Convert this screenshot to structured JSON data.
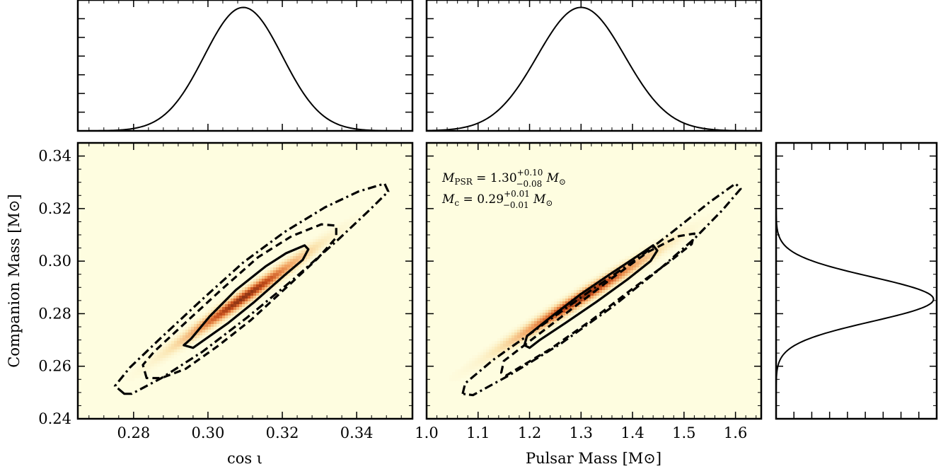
{
  "chart_data": [
    {
      "id": "top-left-marginal",
      "type": "line",
      "xlim": [
        0.265,
        0.355
      ],
      "ylim": [
        0,
        1.06
      ],
      "x_ticks": [
        0.28,
        0.3,
        0.32,
        0.34
      ],
      "curve": {
        "kind": "gaussian",
        "mean": 0.3095,
        "sigma": 0.0105,
        "peak": 1.0
      }
    },
    {
      "id": "top-middle-marginal",
      "type": "line",
      "xlim": [
        1.0,
        1.65
      ],
      "ylim": [
        0,
        1.06
      ],
      "x_ticks": [
        1.0,
        1.1,
        1.2,
        1.3,
        1.4,
        1.5,
        1.6
      ],
      "curve": {
        "kind": "gaussian",
        "mean": 1.3,
        "sigma": 0.085,
        "peak": 1.0
      }
    },
    {
      "id": "bottom-left-joint",
      "type": "heatmap",
      "xlabel": "cos ι",
      "ylabel": "Companion Mass [M⊙]",
      "xlim": [
        0.265,
        0.355
      ],
      "ylim": [
        0.24,
        0.345
      ],
      "x_ticks": [
        0.28,
        0.3,
        0.32,
        0.34
      ],
      "x_tick_labels": [
        "0.28",
        "0.30",
        "0.32",
        "0.34"
      ],
      "y_ticks": [
        0.24,
        0.26,
        0.28,
        0.3,
        0.32,
        0.34
      ],
      "y_tick_labels": [
        "0.24",
        "0.26",
        "0.28",
        "0.30",
        "0.32",
        "0.34"
      ],
      "density": {
        "mean_x": 0.3095,
        "mean_y": 0.286,
        "sigma_x": 0.0105,
        "sigma_y": 0.0105,
        "correlation": 0.985
      },
      "contours": [
        {
          "style": "solid",
          "level_sigma": 1,
          "points": [
            [
              0.2935,
              0.268
            ],
            [
              0.2955,
              0.2705
            ],
            [
              0.3005,
              0.279
            ],
            [
              0.3075,
              0.289
            ],
            [
              0.3155,
              0.298
            ],
            [
              0.321,
              0.303
            ],
            [
              0.326,
              0.306
            ],
            [
              0.327,
              0.3045
            ],
            [
              0.3255,
              0.3005
            ],
            [
              0.3205,
              0.2945
            ],
            [
              0.3125,
              0.2845
            ],
            [
              0.3055,
              0.2765
            ],
            [
              0.2995,
              0.2705
            ],
            [
              0.296,
              0.267
            ]
          ]
        },
        {
          "style": "dashed",
          "level_sigma": 2,
          "points": [
            [
              0.2835,
              0.2555
            ],
            [
              0.2825,
              0.2605
            ],
            [
              0.2855,
              0.2655
            ],
            [
              0.2935,
              0.276
            ],
            [
              0.3035,
              0.289
            ],
            [
              0.3135,
              0.3015
            ],
            [
              0.3225,
              0.3095
            ],
            [
              0.3305,
              0.314
            ],
            [
              0.3345,
              0.3135
            ],
            [
              0.3345,
              0.309
            ],
            [
              0.3295,
              0.301
            ],
            [
              0.3215,
              0.2905
            ],
            [
              0.3115,
              0.2775
            ],
            [
              0.3025,
              0.2675
            ],
            [
              0.294,
              0.259
            ],
            [
              0.2875,
              0.2555
            ]
          ]
        },
        {
          "style": "dashdot",
          "level_sigma": 3,
          "points": [
            [
              0.2775,
              0.2495
            ],
            [
              0.275,
              0.2525
            ],
            [
              0.279,
              0.2595
            ],
            [
              0.2875,
              0.271
            ],
            [
              0.2985,
              0.2855
            ],
            [
              0.3095,
              0.2995
            ],
            [
              0.3205,
              0.311
            ],
            [
              0.3315,
              0.3205
            ],
            [
              0.3405,
              0.3265
            ],
            [
              0.3475,
              0.3295
            ],
            [
              0.3485,
              0.3265
            ],
            [
              0.3435,
              0.3195
            ],
            [
              0.3345,
              0.3075
            ],
            [
              0.3225,
              0.2925
            ],
            [
              0.3105,
              0.2785
            ],
            [
              0.2985,
              0.2655
            ],
            [
              0.2875,
              0.2555
            ],
            [
              0.2795,
              0.2495
            ]
          ]
        }
      ]
    },
    {
      "id": "bottom-middle-joint",
      "type": "heatmap",
      "xlabel": "Pulsar Mass [M⊙]",
      "xlim": [
        1.0,
        1.65
      ],
      "ylim": [
        0.24,
        0.345
      ],
      "x_ticks": [
        1.0,
        1.1,
        1.2,
        1.3,
        1.4,
        1.5,
        1.6
      ],
      "x_tick_labels": [
        "1.0",
        "1.1",
        "1.2",
        "1.3",
        "1.4",
        "1.5",
        "1.6"
      ],
      "y_ticks": [
        0.24,
        0.26,
        0.28,
        0.3,
        0.32,
        0.34
      ],
      "density": {
        "mean_x": 1.3,
        "mean_y": 0.286,
        "sigma_x": 0.085,
        "sigma_y": 0.0105,
        "correlation": 0.985
      },
      "contours": [
        {
          "style": "solid",
          "level_sigma": 1,
          "points": [
            [
              1.19,
              0.268
            ],
            [
              1.195,
              0.2715
            ],
            [
              1.24,
              0.2785
            ],
            [
              1.3,
              0.2875
            ],
            [
              1.36,
              0.2955
            ],
            [
              1.41,
              0.302
            ],
            [
              1.44,
              0.306
            ],
            [
              1.448,
              0.304
            ],
            [
              1.435,
              0.3
            ],
            [
              1.39,
              0.293
            ],
            [
              1.33,
              0.2845
            ],
            [
              1.27,
              0.2765
            ],
            [
              1.22,
              0.27
            ],
            [
              1.2,
              0.267
            ]
          ]
        },
        {
          "style": "dashed",
          "level_sigma": 2,
          "points": [
            [
              1.145,
              0.2575
            ],
            [
              1.15,
              0.262
            ],
            [
              1.2,
              0.2695
            ],
            [
              1.28,
              0.2815
            ],
            [
              1.36,
              0.2935
            ],
            [
              1.43,
              0.3035
            ],
            [
              1.49,
              0.3095
            ],
            [
              1.52,
              0.3105
            ],
            [
              1.515,
              0.3065
            ],
            [
              1.47,
              0.2995
            ],
            [
              1.4,
              0.2895
            ],
            [
              1.32,
              0.2775
            ],
            [
              1.24,
              0.2665
            ],
            [
              1.18,
              0.2595
            ],
            [
              1.155,
              0.2565
            ]
          ]
        },
        {
          "style": "dashdot",
          "level_sigma": 3,
          "points": [
            [
              1.07,
              0.2495
            ],
            [
              1.075,
              0.2535
            ],
            [
              1.13,
              0.2625
            ],
            [
              1.22,
              0.275
            ],
            [
              1.32,
              0.289
            ],
            [
              1.41,
              0.301
            ],
            [
              1.48,
              0.3115
            ],
            [
              1.55,
              0.3225
            ],
            [
              1.6,
              0.3295
            ],
            [
              1.61,
              0.3275
            ],
            [
              1.575,
              0.3195
            ],
            [
              1.52,
              0.3085
            ],
            [
              1.45,
              0.2965
            ],
            [
              1.36,
              0.2825
            ],
            [
              1.26,
              0.2685
            ],
            [
              1.16,
              0.2565
            ],
            [
              1.09,
              0.249
            ]
          ]
        }
      ],
      "annotations": [
        {
          "main": "M",
          "sub": "PSR",
          "eq": " = 1.30",
          "sup": "+0.10",
          "low": "−0.08",
          "unit": "M",
          "unit_sub": "⊙"
        },
        {
          "main": "M",
          "sub": "c",
          "eq": " = 0.29",
          "sup": "+0.01",
          "low": "−0.01",
          "unit": "M",
          "unit_sub": "⊙"
        }
      ]
    },
    {
      "id": "right-marginal",
      "type": "line",
      "orientation": "horizontal",
      "ylim": [
        0.24,
        0.345
      ],
      "xlim": [
        0,
        1.0
      ],
      "y_ticks": [
        0.24,
        0.26,
        0.28,
        0.3,
        0.32,
        0.34
      ],
      "curve": {
        "kind": "gaussian",
        "mean": 0.2855,
        "sigma": 0.0085,
        "peak": 1.0
      }
    }
  ],
  "colors": {
    "background": "#fefde0",
    "low": "#fbe7b4",
    "mid": "#f1a15f",
    "high": "#c9501c",
    "peak": "#8a3312",
    "line": "#000000"
  }
}
